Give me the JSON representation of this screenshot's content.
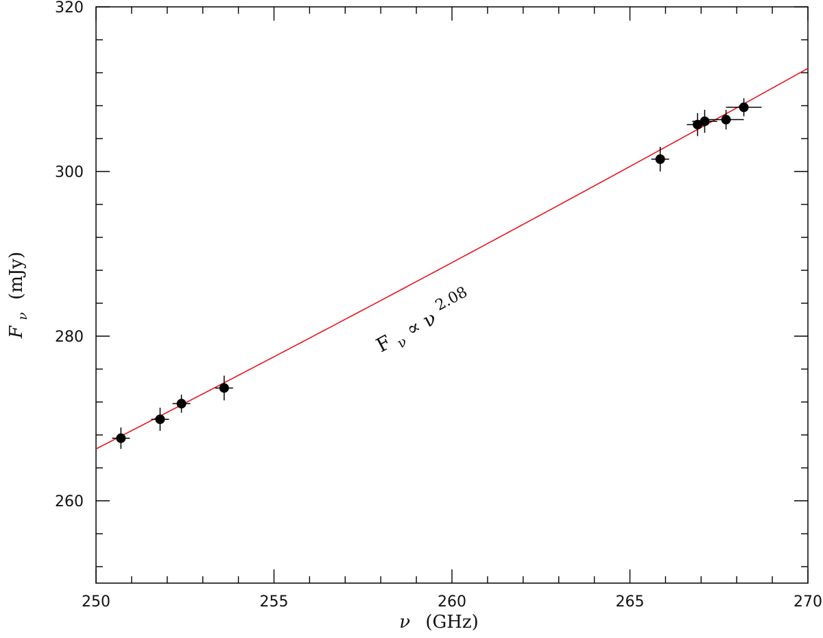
{
  "chart_data": {
    "type": "scatter",
    "title": "",
    "xlabel": {
      "symbol": "ν",
      "text": "(GHz)"
    },
    "ylabel": {
      "symbol": "F",
      "subscript": "ν",
      "text": "(mJy)"
    },
    "xlim": [
      250,
      270
    ],
    "ylim": [
      250,
      320
    ],
    "x_major_ticks": [
      250,
      255,
      260,
      265,
      270
    ],
    "x_tick_labels": [
      "250",
      "255",
      "260",
      "265",
      "270"
    ],
    "x_minor_step": 1,
    "y_major_ticks": [
      260,
      280,
      300,
      320
    ],
    "y_tick_labels": [
      "260",
      "280",
      "300",
      "320"
    ],
    "y_minor_step": 4,
    "grid": false,
    "series": [
      {
        "kind": "points_with_errorbars",
        "color": "#000000",
        "points": [
          {
            "x": 250.7,
            "y": 267.6,
            "xerr": 0.25,
            "yerr": 1.3
          },
          {
            "x": 251.8,
            "y": 269.9,
            "xerr": 0.25,
            "yerr": 1.4
          },
          {
            "x": 252.4,
            "y": 271.8,
            "xerr": 0.25,
            "yerr": 1.1
          },
          {
            "x": 253.6,
            "y": 273.7,
            "xerr": 0.25,
            "yerr": 1.5
          },
          {
            "x": 265.85,
            "y": 301.5,
            "xerr": 0.25,
            "yerr": 1.5
          },
          {
            "x": 266.9,
            "y": 305.7,
            "xerr": 0.3,
            "yerr": 1.4
          },
          {
            "x": 267.1,
            "y": 306.1,
            "xerr": 0.35,
            "yerr": 1.4
          },
          {
            "x": 267.7,
            "y": 306.3,
            "xerr": 0.5,
            "yerr": 1.2
          },
          {
            "x": 268.2,
            "y": 307.8,
            "xerr": 0.5,
            "yerr": 1.1
          }
        ]
      },
      {
        "kind": "power_law_fit",
        "color": "#e8141c",
        "exponent": 2.08,
        "ref_x": 250,
        "ref_y": 266.3,
        "x_range": [
          250,
          270
        ]
      }
    ],
    "annotations": [
      {
        "base": "F",
        "subscript": "ν",
        "middle": " ∝ ",
        "symbol": "ν",
        "superscript": "2.08",
        "x": 258.0,
        "y": 278.0,
        "rotate_deg": -28
      }
    ]
  }
}
